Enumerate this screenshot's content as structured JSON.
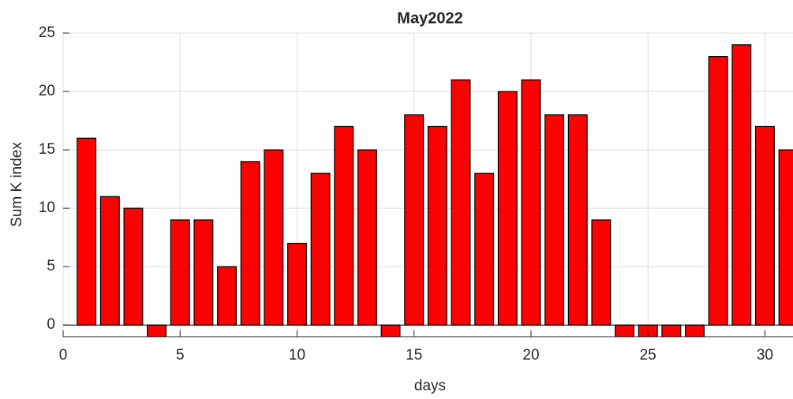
{
  "chart_data": {
    "type": "bar",
    "title": "May2022",
    "xlabel": "days",
    "ylabel": "Sum K index",
    "x": [
      1,
      2,
      3,
      4,
      5,
      6,
      7,
      8,
      9,
      10,
      11,
      12,
      13,
      14,
      15,
      16,
      17,
      18,
      19,
      20,
      21,
      22,
      23,
      24,
      25,
      26,
      27,
      28,
      29,
      30,
      31
    ],
    "values": [
      16,
      11,
      10,
      -1,
      9,
      9,
      5,
      14,
      15,
      7,
      13,
      17,
      15,
      -1,
      18,
      17,
      21,
      13,
      20,
      21,
      18,
      18,
      9,
      -1,
      -1,
      -1,
      -1,
      23,
      24,
      17,
      15
    ],
    "color": "#ff0000",
    "xlim": [
      0,
      31.2
    ],
    "xticks": [
      0,
      5,
      10,
      15,
      20,
      25,
      30
    ],
    "ylim": [
      -1,
      25
    ],
    "yticks": [
      0,
      5,
      10,
      15,
      20,
      25
    ],
    "grid": true
  }
}
